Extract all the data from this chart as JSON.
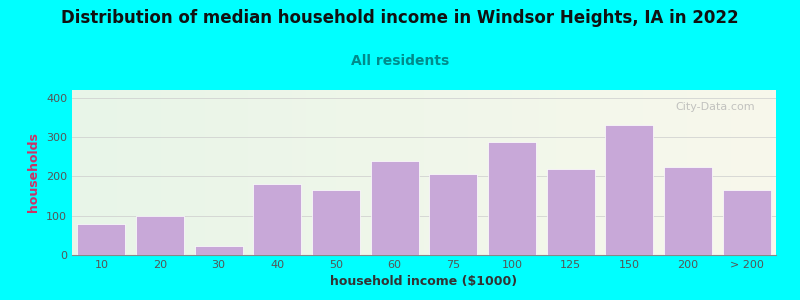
{
  "title": "Distribution of median household income in Windsor Heights, IA in 2022",
  "subtitle": "All residents",
  "xlabel": "household income ($1000)",
  "ylabel": "households",
  "bar_labels": [
    "10",
    "20",
    "30",
    "40",
    "50",
    "60",
    "75",
    "100",
    "125",
    "150",
    "200",
    "> 200"
  ],
  "bar_values": [
    80,
    100,
    22,
    180,
    165,
    240,
    207,
    288,
    218,
    330,
    223,
    165
  ],
  "bar_color": "#C8A8D8",
  "ylim": [
    0,
    420
  ],
  "yticks": [
    0,
    100,
    200,
    300,
    400
  ],
  "background_color": "#00FFFF",
  "plot_bg_left": "#e8f5e8",
  "plot_bg_right": "#f8f8ec",
  "title_fontsize": 12,
  "subtitle_fontsize": 10,
  "subtitle_color": "#008B8B",
  "axis_label_fontsize": 9,
  "tick_label_fontsize": 8,
  "title_color": "#111111",
  "watermark_text": "City-Data.com",
  "ylabel_color": "#CC3366",
  "xlabel_color": "#333333",
  "grid_color": "#cccccc",
  "tick_color": "#555555"
}
